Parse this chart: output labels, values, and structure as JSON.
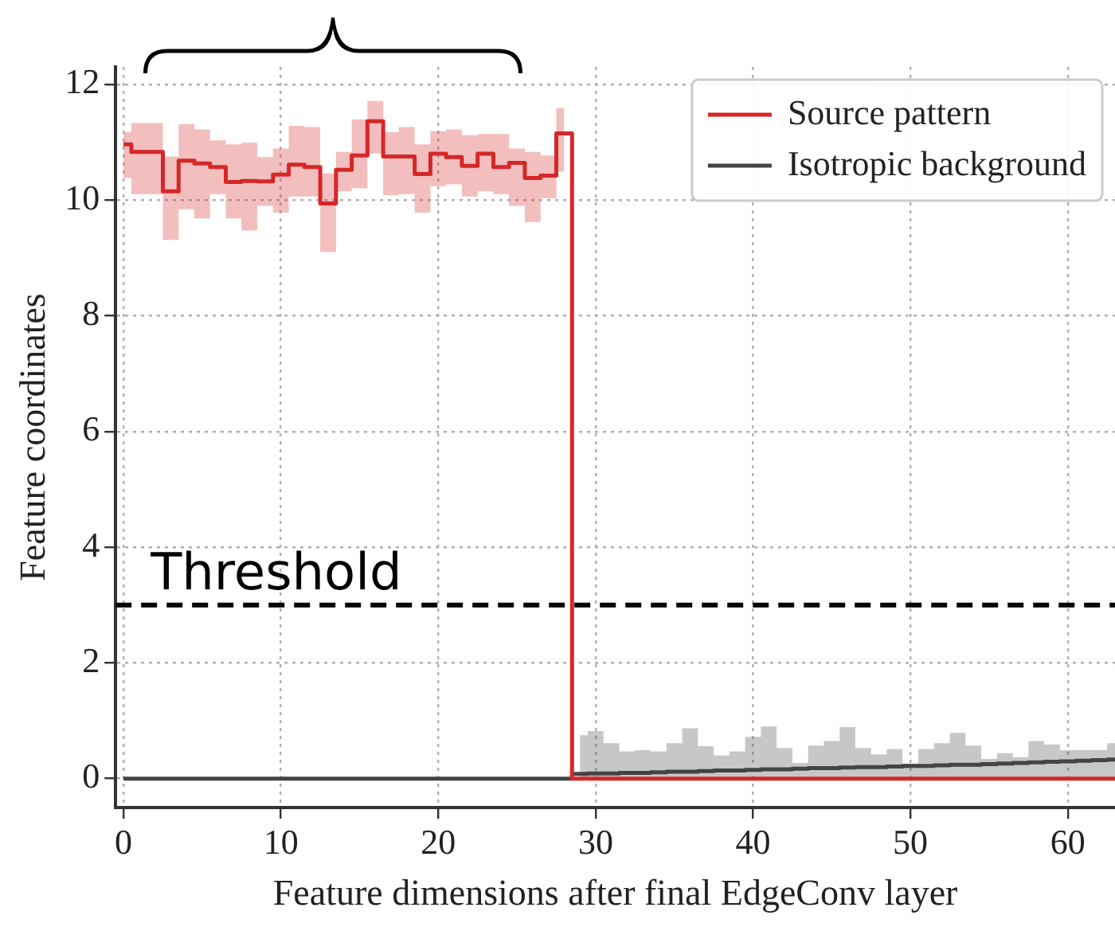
{
  "chart_data": {
    "type": "step",
    "xlabel": "Feature dimensions after final EdgeConv layer",
    "ylabel": "Feature coordinates",
    "x": [
      0,
      1,
      2,
      3,
      4,
      5,
      6,
      7,
      8,
      9,
      10,
      11,
      12,
      13,
      14,
      15,
      16,
      17,
      18,
      19,
      20,
      21,
      22,
      23,
      24,
      25,
      26,
      27,
      28,
      29,
      30,
      31,
      32,
      33,
      34,
      35,
      36,
      37,
      38,
      39,
      40,
      41,
      42,
      43,
      44,
      45,
      46,
      47,
      48,
      49,
      50,
      51,
      52,
      53,
      54,
      55,
      56,
      57,
      58,
      59,
      60,
      61,
      62,
      63
    ],
    "series": [
      {
        "name": "Source pattern",
        "color": "#d62728",
        "values": [
          10.96,
          10.83,
          10.83,
          10.15,
          10.68,
          10.63,
          10.57,
          10.31,
          10.33,
          10.32,
          10.44,
          10.61,
          10.57,
          9.94,
          10.52,
          10.77,
          11.36,
          10.75,
          10.75,
          10.45,
          10.8,
          10.74,
          10.59,
          10.8,
          10.57,
          10.64,
          10.38,
          10.42,
          11.15,
          0,
          0,
          0,
          0,
          0,
          0,
          0,
          0,
          0,
          0,
          0,
          0,
          0,
          0,
          0,
          0,
          0,
          0,
          0,
          0,
          0,
          0,
          0,
          0,
          0,
          0,
          0,
          0,
          0,
          0,
          0,
          0,
          0,
          0,
          0
        ],
        "lower": [
          10.38,
          10.1,
          10.1,
          9.31,
          9.84,
          9.68,
          10.1,
          9.68,
          9.47,
          9.9,
          9.78,
          10.06,
          10.06,
          9.1,
          10.15,
          10.2,
          10.8,
          10.08,
          10.1,
          9.78,
          10.24,
          10.27,
          10.06,
          10.15,
          10.1,
          9.9,
          9.62,
          10.03,
          10.49,
          null,
          null,
          null,
          null,
          null,
          null,
          null,
          null,
          null,
          null,
          null,
          null,
          null,
          null,
          null,
          null,
          null,
          null,
          null,
          null,
          null,
          null,
          null,
          null,
          null,
          null,
          null,
          null,
          null,
          null,
          null,
          null,
          null,
          null,
          null
        ],
        "upper": [
          11.17,
          11.33,
          11.33,
          10.75,
          11.31,
          11.22,
          11.03,
          10.96,
          10.99,
          10.74,
          10.89,
          11.28,
          11.26,
          10.46,
          10.83,
          11.39,
          11.71,
          11.17,
          11.26,
          10.96,
          11.19,
          11.22,
          11.12,
          11.14,
          11.14,
          10.89,
          10.83,
          10.77,
          11.59,
          null,
          null,
          null,
          null,
          null,
          null,
          null,
          null,
          null,
          null,
          null,
          null,
          null,
          null,
          null,
          null,
          null,
          null,
          null,
          null,
          null,
          null,
          null,
          null,
          null,
          null,
          null,
          null,
          null,
          null,
          null,
          null,
          null,
          null,
          null
        ]
      },
      {
        "name": "Isotropic background",
        "color": "#444444",
        "values": [
          0,
          0,
          0,
          0,
          0,
          0,
          0,
          0,
          0,
          0,
          0,
          0,
          0,
          0,
          0,
          0,
          0,
          0,
          0,
          0,
          0,
          0,
          0,
          0,
          0,
          0,
          0,
          0,
          0,
          0.08,
          0.09,
          0.09,
          0.1,
          0.1,
          0.11,
          0.12,
          0.12,
          0.13,
          0.14,
          0.14,
          0.15,
          0.16,
          0.16,
          0.17,
          0.18,
          0.18,
          0.19,
          0.2,
          0.2,
          0.21,
          0.22,
          0.22,
          0.23,
          0.24,
          0.24,
          0.25,
          0.26,
          0.27,
          0.28,
          0.29,
          0.3,
          0.31,
          0.32,
          0.33
        ],
        "lower": [
          null,
          null,
          null,
          null,
          null,
          null,
          null,
          null,
          null,
          null,
          null,
          null,
          null,
          null,
          null,
          null,
          null,
          null,
          null,
          null,
          null,
          null,
          null,
          null,
          null,
          null,
          null,
          null,
          null,
          0,
          0,
          0,
          0,
          0,
          0,
          0,
          0,
          0,
          0,
          0,
          0,
          0,
          0,
          0,
          0,
          0,
          0,
          0,
          0,
          0,
          0,
          0,
          0,
          0,
          0,
          0,
          0,
          0,
          0,
          0,
          0,
          0,
          0,
          0
        ],
        "upper": [
          null,
          null,
          null,
          null,
          null,
          null,
          null,
          null,
          null,
          null,
          null,
          null,
          null,
          null,
          null,
          null,
          null,
          null,
          null,
          null,
          null,
          null,
          null,
          null,
          null,
          null,
          null,
          null,
          null,
          0.75,
          0.82,
          0.61,
          0.47,
          0.49,
          0.47,
          0.61,
          0.87,
          0.56,
          0.4,
          0.47,
          0.72,
          0.9,
          0.53,
          0.27,
          0.57,
          0.65,
          0.89,
          0.53,
          0.42,
          0.51,
          0.26,
          0.51,
          0.61,
          0.79,
          0.57,
          0.34,
          0.44,
          0.37,
          0.65,
          0.59,
          0.49,
          0.49,
          0.49,
          0.61
        ]
      }
    ],
    "ref_lines": [
      {
        "axis": "y",
        "value": 3,
        "label": "Threshold",
        "color": "#000000",
        "line_style": "dashed"
      }
    ],
    "xlim": [
      -0.5,
      63
    ],
    "xticks": [
      0,
      10,
      20,
      30,
      40,
      50,
      60
    ],
    "ylim": [
      -0.5,
      12.3
    ],
    "yticks": [
      0,
      2,
      4,
      6,
      8,
      10,
      12
    ],
    "grid": true,
    "legend": "top right"
  }
}
